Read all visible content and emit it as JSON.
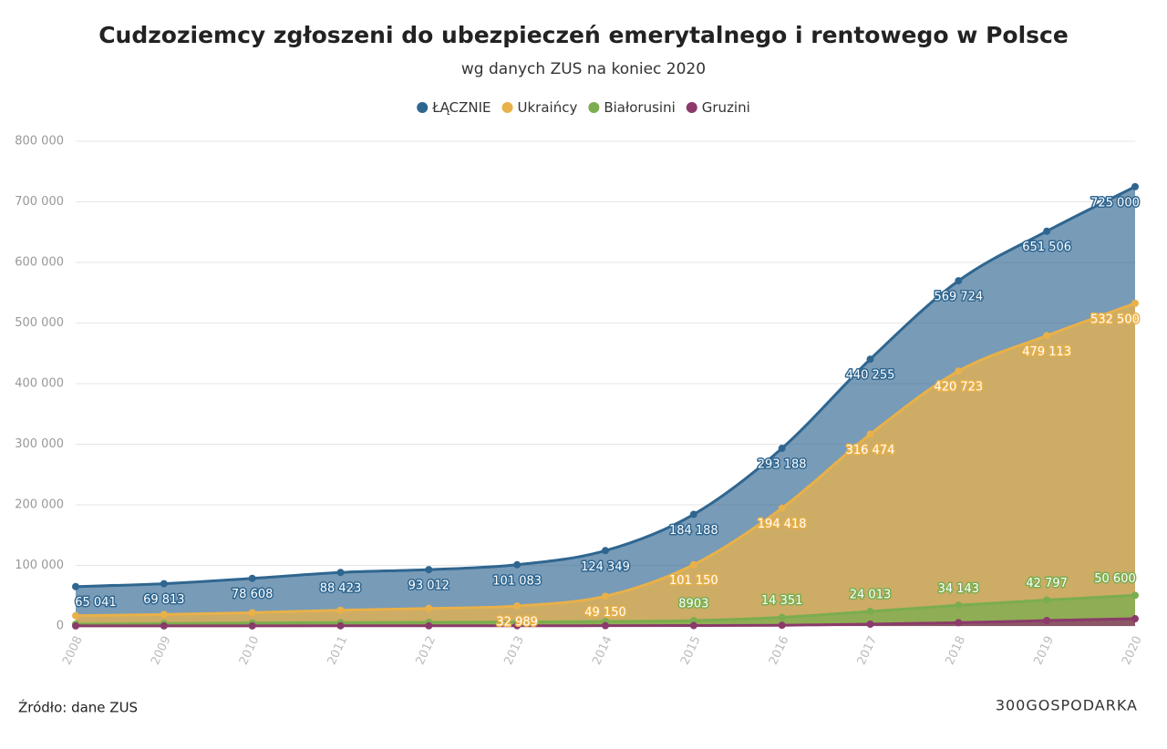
{
  "chart_data": {
    "type": "area",
    "title": "Cudzoziemcy zgłoszeni do ubezpieczeń emerytalnego i rentowego w Polsce",
    "subtitle": "wg danych ZUS na koniec 2020",
    "source": "Źródło: dane ZUS",
    "brand": "300GOSPODARKA",
    "categories": [
      "2008",
      "2009",
      "2010",
      "2011",
      "2012",
      "2013",
      "2014",
      "2015",
      "2016",
      "2017",
      "2018",
      "2019",
      "2020"
    ],
    "ylim": [
      0,
      800000
    ],
    "yticks": [
      0,
      {
        "value": 100000,
        "label": "100 000"
      },
      {
        "value": 200000,
        "label": "200 000"
      },
      {
        "value": 300000,
        "label": "300 000"
      },
      {
        "value": 400000,
        "label": "400 000"
      },
      {
        "value": 500000,
        "label": "500 000"
      },
      {
        "value": 600000,
        "label": "600 000"
      },
      {
        "value": 700000,
        "label": "700 000"
      },
      {
        "value": 800000,
        "label": "800 000"
      }
    ],
    "grid": true,
    "legend": "top",
    "series": [
      {
        "name": "ŁĄCZNIE",
        "color": "#2f6690",
        "values": [
          65041,
          69813,
          78608,
          88423,
          93012,
          101083,
          124349,
          184188,
          293188,
          440255,
          569724,
          651506,
          725000
        ],
        "value_labels": [
          "65 041",
          "69 813",
          "78 608",
          "88 423",
          "93 012",
          "101 083",
          "124 349",
          "184 188",
          "293 188",
          "440 255",
          "569 724",
          "651 506",
          "725 000"
        ]
      },
      {
        "name": "Ukraińcy",
        "color": "#e9b149",
        "values": [
          17000,
          19000,
          22000,
          26000,
          29000,
          32989,
          49150,
          101150,
          194418,
          316474,
          420723,
          479113,
          532500
        ],
        "value_labels": [
          null,
          null,
          null,
          null,
          null,
          "32 989",
          "49 150",
          "101 150",
          "194 418",
          "316 474",
          "420 723",
          "479 113",
          "532 500"
        ]
      },
      {
        "name": "Białorusini",
        "color": "#7aad4f",
        "values": [
          3000,
          4000,
          4927,
          5512,
          6035,
          6500,
          7500,
          8903,
          14351,
          24013,
          34143,
          42797,
          50600
        ],
        "value_labels": [
          null,
          null,
          null,
          null,
          null,
          null,
          null,
          "8903",
          "14 351",
          "24 013",
          "34 143",
          "42 797",
          "50 600"
        ]
      },
      {
        "name": "Gruzini",
        "color": "#8b3a6b",
        "values": [
          200,
          200,
          200,
          300,
          300,
          400,
          500,
          700,
          1200,
          3000,
          5500,
          9000,
          12000
        ]
      }
    ]
  }
}
